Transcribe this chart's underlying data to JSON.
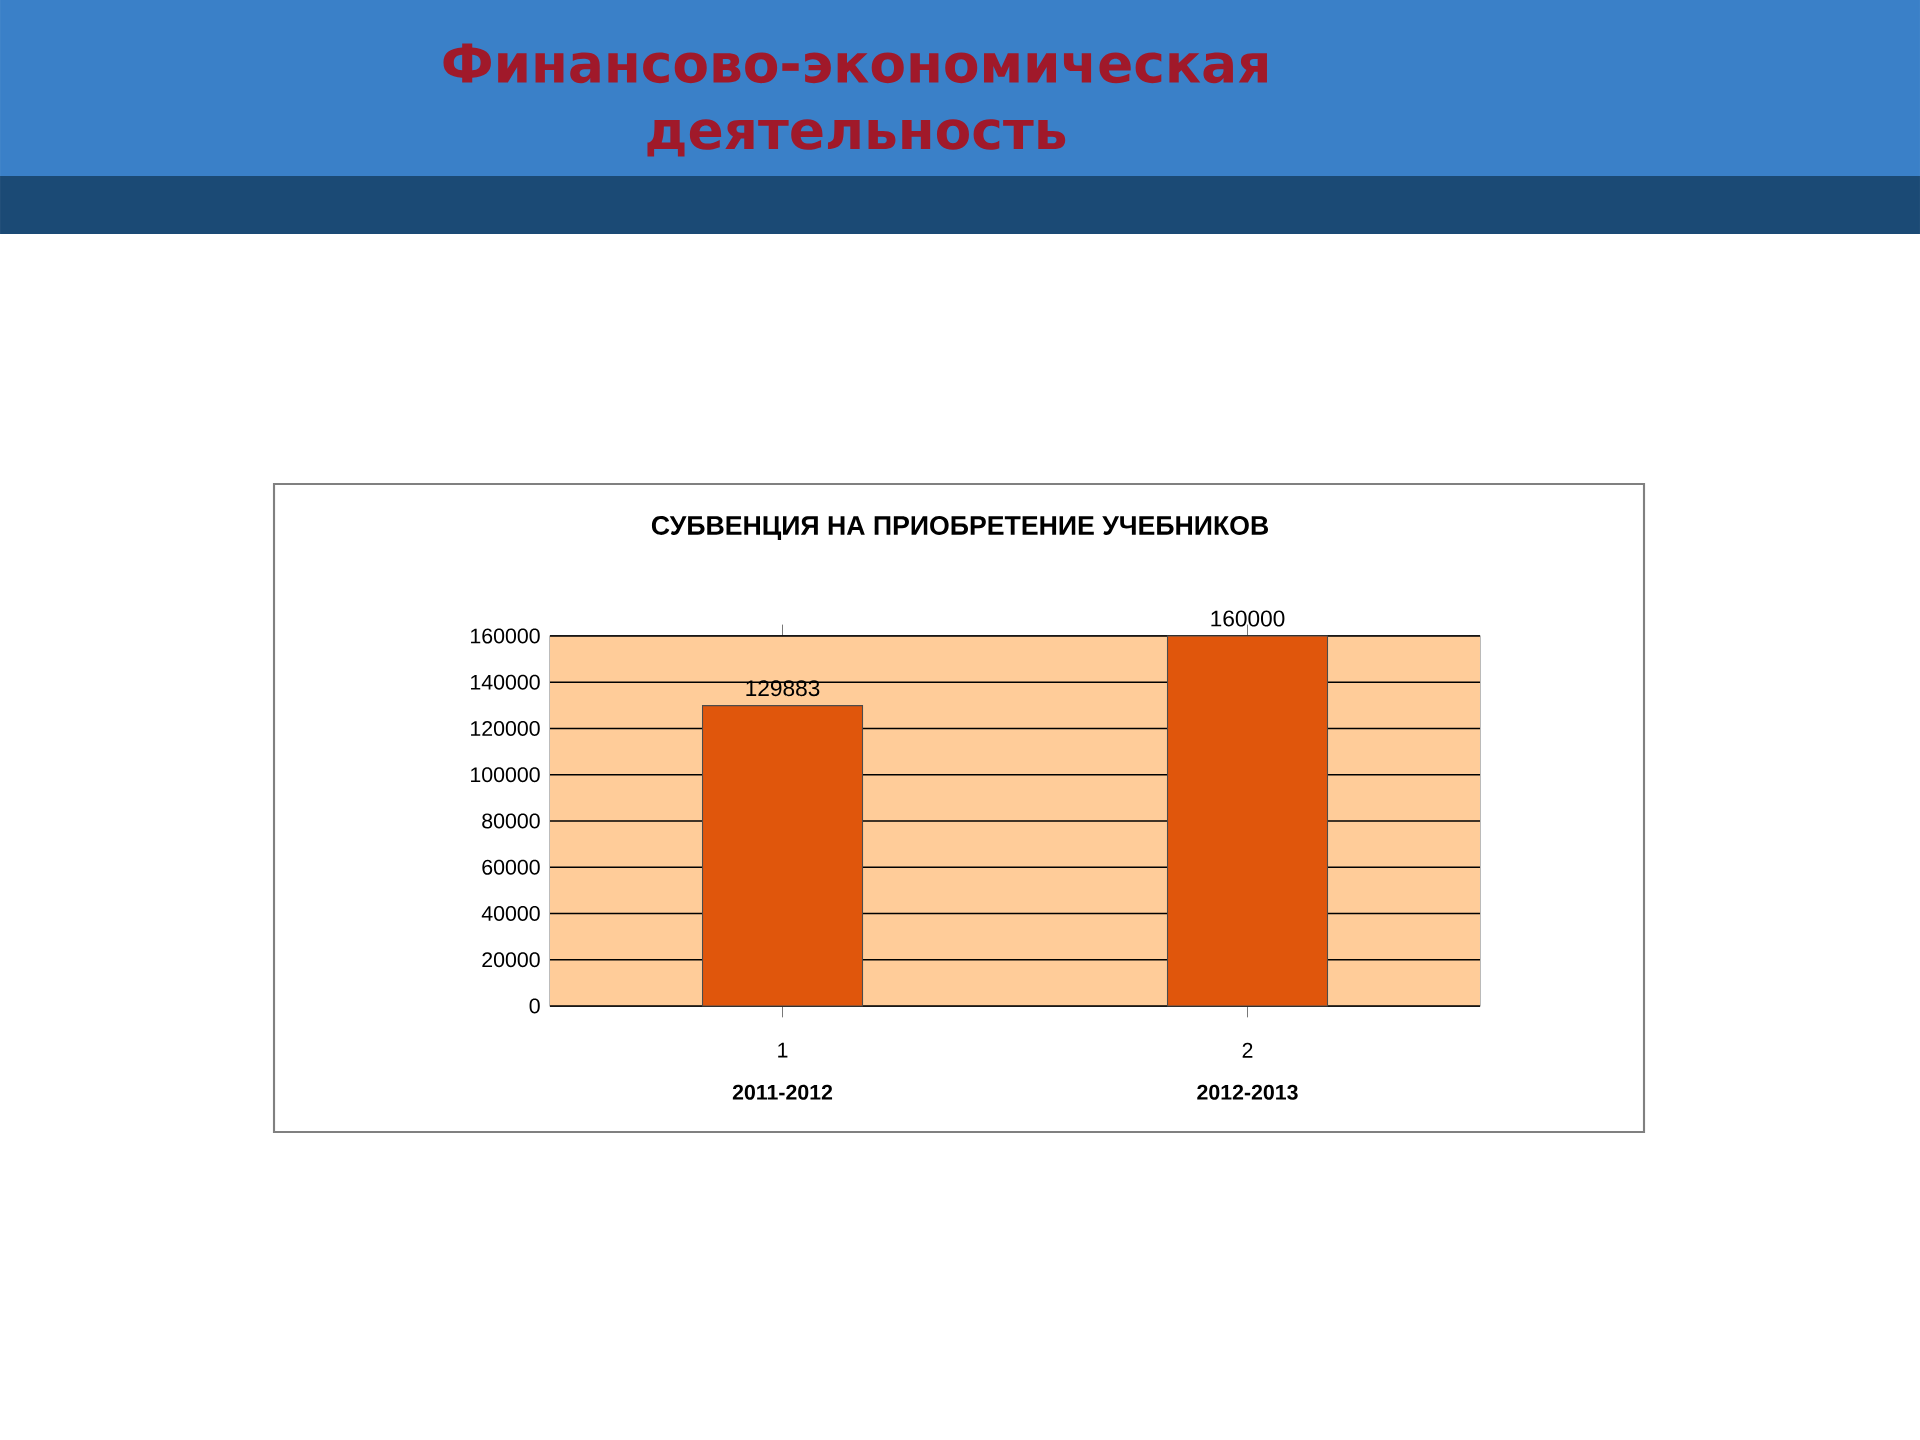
{
  "chart_data": {
    "type": "bar",
    "title": "Финансово-экономическая деятельность",
    "subtitle": "СУБВЕНЦИЯ НА ПРИОБРЕТЕНИЕ УЧЕБНИКОВ",
    "categories": [
      "1",
      "2"
    ],
    "values": [
      129883,
      160000
    ],
    "color": "#e0560c",
    "ylim": [
      0,
      160000
    ],
    "yticks": [
      0,
      20000,
      40000,
      60000,
      80000,
      100000,
      120000,
      140000,
      160000
    ],
    "grid": "y",
    "data_labels": true,
    "annotations": [
      "2011-2012",
      "2012-2013"
    ]
  }
}
